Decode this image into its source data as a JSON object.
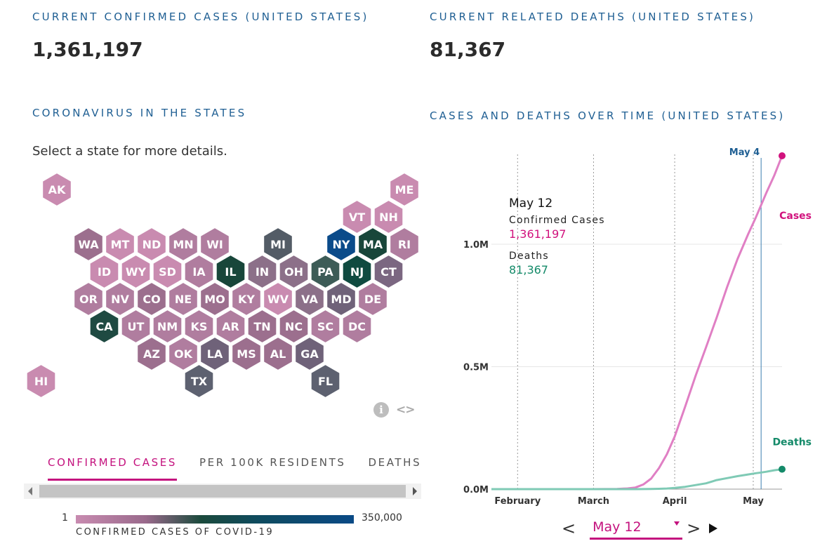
{
  "summary": {
    "cases_title": "CURRENT CONFIRMED CASES (UNITED STATES)",
    "cases_value": "1,361,197",
    "deaths_title": "CURRENT RELATED DEATHS (UNITED STATES)",
    "deaths_value": "81,367"
  },
  "states_section": {
    "title": "CORONAVIRUS IN THE STATES",
    "instruction": "Select a state for more details."
  },
  "states": [
    {
      "abbr": "AK",
      "col": 0,
      "row": 0,
      "color": "#c98bb0"
    },
    {
      "abbr": "ME",
      "col": 11,
      "row": 0,
      "color": "#c98bb0"
    },
    {
      "abbr": "VT",
      "col": 9.5,
      "row": 1,
      "color": "#c98bb0"
    },
    {
      "abbr": "NH",
      "col": 10.5,
      "row": 1,
      "color": "#c98bb0"
    },
    {
      "abbr": "WA",
      "col": 1,
      "row": 2,
      "color": "#9c6f8e"
    },
    {
      "abbr": "MT",
      "col": 2,
      "row": 2,
      "color": "#c98bb0"
    },
    {
      "abbr": "ND",
      "col": 3,
      "row": 2,
      "color": "#c98bb0"
    },
    {
      "abbr": "MN",
      "col": 4,
      "row": 2,
      "color": "#b07d9f"
    },
    {
      "abbr": "WI",
      "col": 5,
      "row": 2,
      "color": "#b07d9f"
    },
    {
      "abbr": "MI",
      "col": 7,
      "row": 2,
      "color": "#535c66"
    },
    {
      "abbr": "NY",
      "col": 9,
      "row": 2,
      "color": "#0b4b8a"
    },
    {
      "abbr": "MA",
      "col": 10,
      "row": 2,
      "color": "#18463a"
    },
    {
      "abbr": "RI",
      "col": 11,
      "row": 2,
      "color": "#b07d9f"
    },
    {
      "abbr": "ID",
      "col": 1.5,
      "row": 3,
      "color": "#c98bb0"
    },
    {
      "abbr": "WY",
      "col": 2.5,
      "row": 3,
      "color": "#c98bb0"
    },
    {
      "abbr": "SD",
      "col": 3.5,
      "row": 3,
      "color": "#c98bb0"
    },
    {
      "abbr": "IA",
      "col": 4.5,
      "row": 3,
      "color": "#b07d9f"
    },
    {
      "abbr": "IL",
      "col": 5.5,
      "row": 3,
      "color": "#18463a"
    },
    {
      "abbr": "IN",
      "col": 6.5,
      "row": 3,
      "color": "#8c7089"
    },
    {
      "abbr": "OH",
      "col": 7.5,
      "row": 3,
      "color": "#8c7089"
    },
    {
      "abbr": "PA",
      "col": 8.5,
      "row": 3,
      "color": "#3d5c57"
    },
    {
      "abbr": "NJ",
      "col": 9.5,
      "row": 3,
      "color": "#0f4a40"
    },
    {
      "abbr": "CT",
      "col": 10.5,
      "row": 3,
      "color": "#7b6781"
    },
    {
      "abbr": "OR",
      "col": 1,
      "row": 4,
      "color": "#b07d9f"
    },
    {
      "abbr": "NV",
      "col": 2,
      "row": 4,
      "color": "#b07d9f"
    },
    {
      "abbr": "CO",
      "col": 3,
      "row": 4,
      "color": "#9c6f8e"
    },
    {
      "abbr": "NE",
      "col": 4,
      "row": 4,
      "color": "#b07d9f"
    },
    {
      "abbr": "MO",
      "col": 5,
      "row": 4,
      "color": "#9c6f8e"
    },
    {
      "abbr": "KY",
      "col": 6,
      "row": 4,
      "color": "#b07d9f"
    },
    {
      "abbr": "WV",
      "col": 7,
      "row": 4,
      "color": "#c98bb0"
    },
    {
      "abbr": "VA",
      "col": 8,
      "row": 4,
      "color": "#8c7089"
    },
    {
      "abbr": "MD",
      "col": 9,
      "row": 4,
      "color": "#6f6279"
    },
    {
      "abbr": "DE",
      "col": 10,
      "row": 4,
      "color": "#b07d9f"
    },
    {
      "abbr": "CA",
      "col": 1.5,
      "row": 5,
      "color": "#1f4a42"
    },
    {
      "abbr": "UT",
      "col": 2.5,
      "row": 5,
      "color": "#b07d9f"
    },
    {
      "abbr": "NM",
      "col": 3.5,
      "row": 5,
      "color": "#b07d9f"
    },
    {
      "abbr": "KS",
      "col": 4.5,
      "row": 5,
      "color": "#b07d9f"
    },
    {
      "abbr": "AR",
      "col": 5.5,
      "row": 5,
      "color": "#b07d9f"
    },
    {
      "abbr": "TN",
      "col": 6.5,
      "row": 5,
      "color": "#9c6f8e"
    },
    {
      "abbr": "NC",
      "col": 7.5,
      "row": 5,
      "color": "#9c6f8e"
    },
    {
      "abbr": "SC",
      "col": 8.5,
      "row": 5,
      "color": "#b07d9f"
    },
    {
      "abbr": "DC",
      "col": 9.5,
      "row": 5,
      "color": "#b07d9f"
    },
    {
      "abbr": "AZ",
      "col": 3,
      "row": 6,
      "color": "#9c6f8e"
    },
    {
      "abbr": "OK",
      "col": 4,
      "row": 6,
      "color": "#b07d9f"
    },
    {
      "abbr": "LA",
      "col": 5,
      "row": 6,
      "color": "#6f6279"
    },
    {
      "abbr": "MS",
      "col": 6,
      "row": 6,
      "color": "#9c6f8e"
    },
    {
      "abbr": "AL",
      "col": 7,
      "row": 6,
      "color": "#9c6f8e"
    },
    {
      "abbr": "GA",
      "col": 8,
      "row": 6,
      "color": "#6f6279"
    },
    {
      "abbr": "HI",
      "col": -0.5,
      "row": 7,
      "color": "#c98bb0"
    },
    {
      "abbr": "TX",
      "col": 4.5,
      "row": 7,
      "color": "#5d6170"
    },
    {
      "abbr": "FL",
      "col": 8.5,
      "row": 7,
      "color": "#5d6170"
    }
  ],
  "map_tools": {
    "info_icon": "info-icon",
    "embed_icon": "embed-code-icon"
  },
  "tabs": [
    {
      "label": "CONFIRMED CASES",
      "active": true
    },
    {
      "label": "PER 100K RESIDENTS",
      "active": false
    },
    {
      "label": "DEATHS",
      "active": false
    }
  ],
  "legend": {
    "min": "1",
    "max": "350,000",
    "caption": "CONFIRMED CASES OF COVID-19"
  },
  "chart_section": {
    "title": "CASES AND DEATHS OVER TIME (UNITED STATES)"
  },
  "tooltip": {
    "date": "May 12",
    "cases_label": "Confirmed Cases",
    "cases_value": "1,361,197",
    "deaths_label": "Deaths",
    "deaths_value": "81,367"
  },
  "date_nav": {
    "selected": "May 12",
    "prev": "<",
    "next": ">"
  },
  "colors": {
    "cases": "#e07fc4",
    "cases_label": "#d1127d",
    "deaths": "#7fcab5",
    "deaths_label": "#148a69",
    "accent": "#c4127e",
    "title": "#1f5f93"
  },
  "chart_data": {
    "type": "line",
    "x": [
      "2020-01-22",
      "2020-02-15",
      "2020-02-29",
      "2020-03-05",
      "2020-03-10",
      "2020-03-14",
      "2020-03-17",
      "2020-03-20",
      "2020-03-23",
      "2020-03-26",
      "2020-03-29",
      "2020-04-01",
      "2020-04-05",
      "2020-04-09",
      "2020-04-13",
      "2020-04-17",
      "2020-04-21",
      "2020-04-25",
      "2020-04-29",
      "2020-05-02",
      "2020-05-04",
      "2020-05-06",
      "2020-05-09",
      "2020-05-12"
    ],
    "series": [
      {
        "name": "Cases",
        "values": [
          1,
          15,
          70,
          300,
          1000,
          3000,
          6500,
          19000,
          43000,
          86000,
          142000,
          215000,
          337000,
          463000,
          580000,
          700000,
          825000,
          940000,
          1040000,
          1110000,
          1160000,
          1210000,
          1280000,
          1361197
        ]
      },
      {
        "name": "Deaths",
        "values": [
          0,
          0,
          1,
          12,
          30,
          60,
          110,
          260,
          550,
          1300,
          2500,
          5000,
          9500,
          16700,
          23700,
          37000,
          45000,
          53000,
          60000,
          65000,
          68000,
          71000,
          77000,
          81367
        ]
      }
    ],
    "yticks": [
      "0.0M",
      "0.5M",
      "1.0M"
    ],
    "ytick_values": [
      0,
      500000,
      1000000
    ],
    "ylim": [
      0,
      1361197
    ],
    "xticks": [
      {
        "label": "February",
        "date": "2020-02-01"
      },
      {
        "label": "March",
        "date": "2020-03-01"
      },
      {
        "label": "April",
        "date": "2020-04-01"
      },
      {
        "label": "May",
        "date": "2020-05-01"
      }
    ],
    "marker": {
      "label": "May 4",
      "date": "2020-05-04"
    },
    "grid": true
  }
}
